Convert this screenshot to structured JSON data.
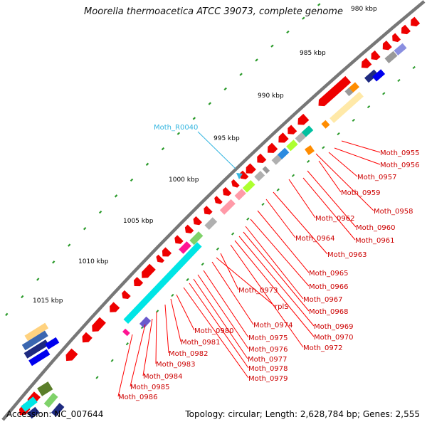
{
  "title": "Moorella thermoacetica ATCC 39073, complete genome",
  "footer": {
    "accession": "Accession: NC_007644",
    "summary": "Topology: circular; Length: 2,628,784 bp; Genes: 2,555"
  },
  "kbp_labels": [
    "980 kbp",
    "985 kbp",
    "990 kbp",
    "995 kbp",
    "1000 kbp",
    "1005 kbp",
    "1010 kbp",
    "1015 kbp"
  ],
  "gene_labels": [
    "Moth_0955",
    "Moth_0956",
    "Moth_0957",
    "Moth_0959",
    "Moth_0958",
    "Moth_0960",
    "Moth_0961",
    "Moth_0962",
    "Moth_0963",
    "Moth_0964",
    "Moth_0965",
    "Moth_0966",
    "Moth_0967",
    "Moth_0968",
    "Moth_0969",
    "Moth_0970",
    "Moth_0972",
    "Moth_0973",
    "rplS",
    "Moth_0974",
    "Moth_0975",
    "Moth_0976",
    "Moth_0977",
    "Moth_0978",
    "Moth_0979",
    "Moth_0980",
    "Moth_0981",
    "Moth_0982",
    "Moth_0983",
    "Moth_0984",
    "Moth_0985",
    "Moth_0986"
  ],
  "rna_label": "Moth_R0040",
  "colors": {
    "backbone": "#777777",
    "gene_arrow": "#ee0000",
    "label_line": "#ff0000",
    "rna_line": "#35b6e0",
    "tick": "#2a9a2a"
  },
  "cog_colors": [
    "#00e5e5",
    "#ffe9a8",
    "#999999",
    "#b0b0b0",
    "#7fd26a",
    "#adff2f",
    "#ff9aa8",
    "#ff8c00",
    "#2b8ae0",
    "#00c0a0",
    "#ff1493",
    "#6a5acd",
    "#0000ee",
    "#1e2a80",
    "#8a8fe0",
    "#5b7e2a",
    "#ffd27f"
  ]
}
